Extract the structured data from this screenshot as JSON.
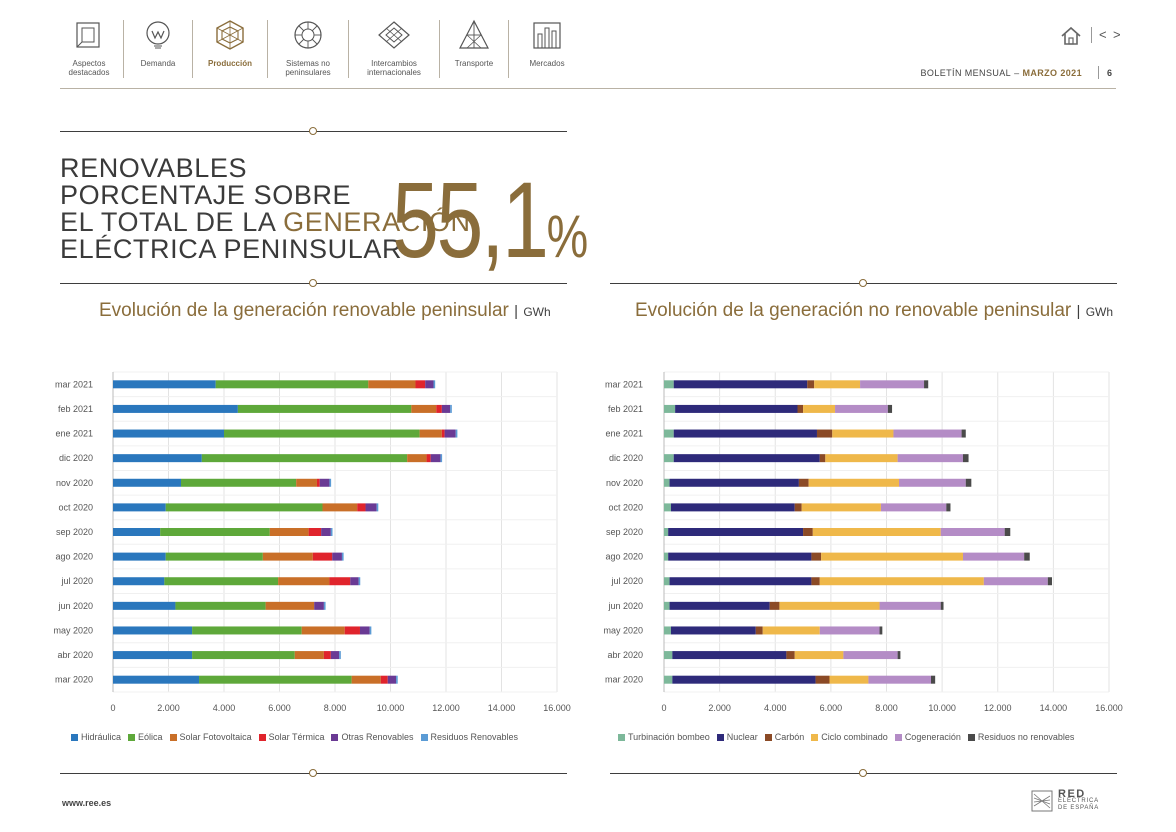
{
  "nav": {
    "items": [
      {
        "label": "Aspectos destacados",
        "icon": "highlights-icon"
      },
      {
        "label": "Demanda",
        "icon": "demand-icon"
      },
      {
        "label": "Producción",
        "icon": "production-icon",
        "active": true
      },
      {
        "label": "Sistemas no peninsulares",
        "icon": "islands-icon"
      },
      {
        "label": "Intercambios internacionales",
        "icon": "exchanges-icon"
      },
      {
        "label": "Transporte",
        "icon": "transport-icon"
      },
      {
        "label": "Mercados",
        "icon": "markets-icon"
      }
    ],
    "home_icon": "home-icon",
    "prev_symbol": "<",
    "next_symbol": ">"
  },
  "header": {
    "bulletin_label": "BOLETÍN MENSUAL",
    "dash": "–",
    "period": "MARZO 2021",
    "page_number": "6"
  },
  "headline": {
    "line1": "RENOVABLES",
    "line2": "PORCENTAJE SOBRE",
    "line3_a": "EL TOTAL DE LA ",
    "line3_b": "GENERACIÓN",
    "line4": "ELÉCTRICA PENINSULAR",
    "value": "55,1",
    "unit": "%"
  },
  "colors": {
    "gold": "#8a6d3b",
    "dark": "#3e3e3e"
  },
  "chart_data": [
    {
      "type": "bar",
      "orientation": "horizontal",
      "stacked": true,
      "title": "Evolución de la generación renovable peninsular",
      "unit": "GWh",
      "categories": [
        "mar 2021",
        "feb 2021",
        "ene 2021",
        "dic 2020",
        "nov 2020",
        "oct 2020",
        "sep 2020",
        "ago 2020",
        "jul 2020",
        "jun 2020",
        "may 2020",
        "abr 2020",
        "mar 2020"
      ],
      "xlim": [
        0,
        16000
      ],
      "xticks": [
        "0",
        "2.000",
        "4.000",
        "6.000",
        "8.000",
        "10.000",
        "12.000",
        "14.000",
        "16.000"
      ],
      "grid": true,
      "legend": "bottom",
      "series": [
        {
          "name": "Hidráulica",
          "color": "#2a77bd",
          "values": [
            3700,
            4500,
            4000,
            3200,
            2450,
            1900,
            1700,
            1900,
            1850,
            2250,
            2850,
            2850,
            3100
          ]
        },
        {
          "name": "Eólica",
          "color": "#5ea83a",
          "values": [
            5500,
            6250,
            7050,
            7400,
            4150,
            5650,
            3950,
            3500,
            4100,
            3250,
            3950,
            3700,
            5500
          ]
        },
        {
          "name": "Solar Fotovoltaica",
          "color": "#c96f28",
          "values": [
            1700,
            900,
            800,
            700,
            750,
            1250,
            1400,
            1800,
            1850,
            1750,
            1550,
            1050,
            1050
          ]
        },
        {
          "name": "Solar Térmica",
          "color": "#e0242c",
          "values": [
            350,
            200,
            100,
            150,
            100,
            300,
            450,
            700,
            750,
            0,
            550,
            250,
            250
          ]
        },
        {
          "name": "Otras Renovables",
          "color": "#6a3a94",
          "values": [
            300,
            300,
            400,
            350,
            350,
            400,
            350,
            350,
            300,
            350,
            350,
            300,
            300
          ]
        },
        {
          "name": "Residuos Renovables",
          "color": "#5b9bd5",
          "values": [
            60,
            60,
            60,
            60,
            60,
            60,
            60,
            60,
            60,
            60,
            60,
            60,
            60
          ]
        }
      ]
    },
    {
      "type": "bar",
      "orientation": "horizontal",
      "stacked": true,
      "title": "Evolución de la generación no renovable peninsular",
      "unit": "GWh",
      "categories": [
        "mar 2021",
        "feb 2021",
        "ene 2021",
        "dic 2020",
        "nov 2020",
        "oct 2020",
        "sep 2020",
        "ago 2020",
        "jul 2020",
        "jun 2020",
        "may 2020",
        "abr 2020",
        "mar 2020"
      ],
      "xlim": [
        0,
        16000
      ],
      "xticks": [
        "0",
        "2.000",
        "4.000",
        "6.000",
        "8.000",
        "10.000",
        "12.000",
        "14.000",
        "16.000"
      ],
      "grid": true,
      "legend": "bottom",
      "series": [
        {
          "name": "Turbinación bombeo",
          "color": "#7db89a",
          "values": [
            350,
            400,
            350,
            350,
            200,
            250,
            150,
            150,
            200,
            200,
            250,
            300,
            300
          ]
        },
        {
          "name": "Nuclear",
          "color": "#2e2a7a",
          "values": [
            4800,
            4400,
            5150,
            5250,
            4650,
            4450,
            4850,
            5150,
            5100,
            3600,
            3050,
            4100,
            5150
          ]
        },
        {
          "name": "Carbón",
          "color": "#8b4a26",
          "values": [
            250,
            200,
            550,
            200,
            350,
            250,
            350,
            350,
            300,
            350,
            250,
            300,
            500
          ]
        },
        {
          "name": "Ciclo combinado",
          "color": "#efb84a",
          "values": [
            1650,
            1150,
            2200,
            2600,
            3250,
            2850,
            4600,
            5100,
            5900,
            3600,
            2050,
            1750,
            1400
          ]
        },
        {
          "name": "Cogeneración",
          "color": "#b48cc6",
          "values": [
            2300,
            1900,
            2450,
            2350,
            2400,
            2350,
            2300,
            2200,
            2300,
            2200,
            2150,
            1950,
            2250
          ]
        },
        {
          "name": "Residuos no renovables",
          "color": "#4a4a4a",
          "values": [
            150,
            150,
            150,
            200,
            200,
            150,
            200,
            200,
            150,
            100,
            100,
            100,
            150
          ]
        }
      ]
    }
  ],
  "footer": {
    "url": "www.ree.es",
    "logo_line1": "RED",
    "logo_line2": "ELÉCTRICA",
    "logo_line3": "DE ESPAÑA"
  }
}
